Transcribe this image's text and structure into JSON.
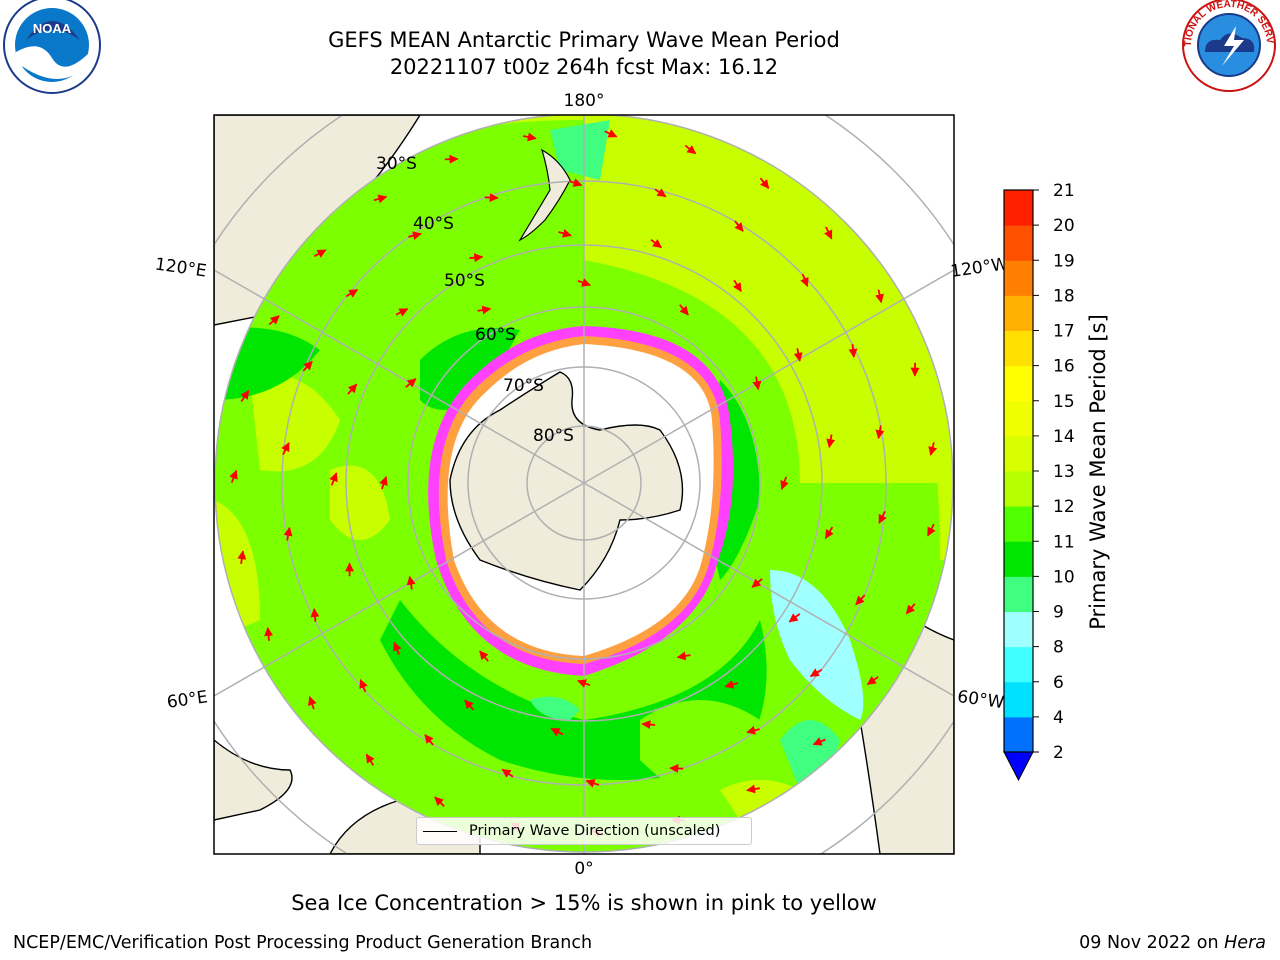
{
  "header": {
    "title": "GEFS MEAN Antarctic Primary Wave Mean Period",
    "subtitle": "20221107 t00z 264h fcst   Max: 16.12"
  },
  "logos": {
    "left": {
      "icon": "noaa-logo-icon",
      "text": "NOAA"
    },
    "right": {
      "icon": "nws-logo-icon",
      "text": "NATIONAL WEATHER SERVICE"
    }
  },
  "map": {
    "projection": "south-polar-stereographic",
    "meridian_labels": [
      "180°",
      "120°E",
      "120°W",
      "60°E",
      "60°W",
      "0°"
    ],
    "parallel_labels": [
      "30°S",
      "40°S",
      "50°S",
      "60°S",
      "70°S",
      "80°S"
    ],
    "land_color": "#efecdc",
    "ocean_colors": [
      "#7cff00",
      "#c8ff00",
      "#00e600",
      "#a0ffff"
    ],
    "ice_colors": [
      "#ff40ff",
      "#ffa040"
    ],
    "arrow_color": "#ff0000"
  },
  "legend": {
    "label": "Primary Wave Direction (unscaled)"
  },
  "colorbar": {
    "label": "Primary Wave Mean Period [s]",
    "ticks": [
      "2",
      "4",
      "6",
      "8",
      "9",
      "10",
      "11",
      "12",
      "13",
      "14",
      "15",
      "16",
      "17",
      "18",
      "19",
      "20",
      "21"
    ],
    "colors": [
      "#0070ff",
      "#00e0ff",
      "#40ffff",
      "#a0ffff",
      "#40ff80",
      "#00e600",
      "#50ff00",
      "#b4ff00",
      "#d8ff00",
      "#f0ff00",
      "#ffff00",
      "#ffe000",
      "#ffb000",
      "#ff8000",
      "#ff5000",
      "#ff2000"
    ],
    "extend_color": "#0000ff"
  },
  "note": "Sea Ice Concentration > 15% is shown in pink to yellow",
  "footer": {
    "left": "NCEP/EMC/Verification Post Processing Product Generation Branch",
    "date": "09 Nov 2022 on",
    "machine": "Hera"
  }
}
